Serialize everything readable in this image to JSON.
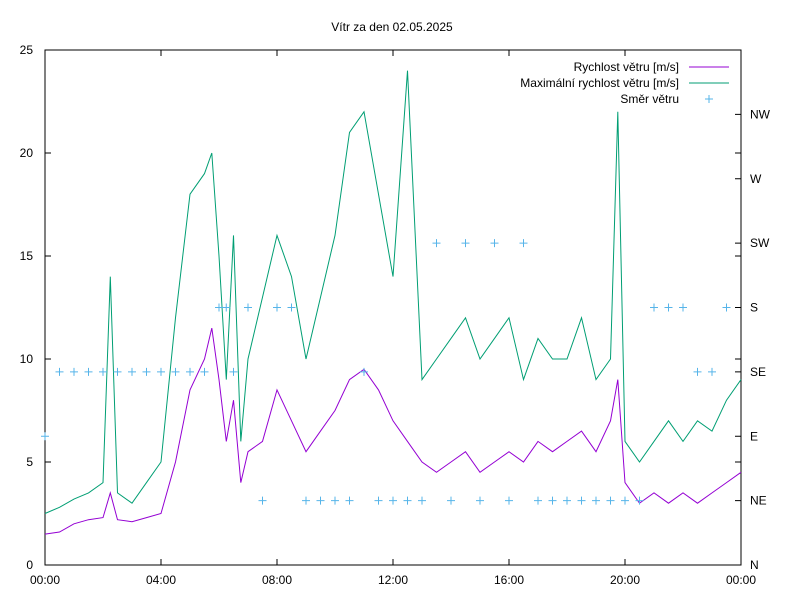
{
  "chart_data": {
    "type": "line",
    "title": "Vítr za den 02.05.2025",
    "xlim_hours": [
      0,
      24
    ],
    "ylim": [
      0,
      25
    ],
    "y_ticks": [
      0,
      5,
      10,
      15,
      20,
      25
    ],
    "x_tick_labels": [
      "00:00",
      "04:00",
      "08:00",
      "12:00",
      "16:00",
      "20:00",
      "00:00"
    ],
    "y2_ticks": [
      "N",
      "NE",
      "E",
      "SE",
      "S",
      "SW",
      "W",
      "NW"
    ],
    "legend_position": "top-right",
    "series": [
      {
        "name": "Rychlost větru [m/s]",
        "color": "#9400d3",
        "x": [
          "00:00",
          "00:30",
          "01:00",
          "01:30",
          "02:00",
          "02:15",
          "02:30",
          "03:00",
          "03:30",
          "04:00",
          "04:30",
          "05:00",
          "05:30",
          "05:45",
          "06:00",
          "06:15",
          "06:30",
          "06:45",
          "07:00",
          "07:30",
          "08:00",
          "08:30",
          "09:00",
          "09:30",
          "10:00",
          "10:30",
          "11:00",
          "11:30",
          "12:00",
          "12:30",
          "13:00",
          "13:30",
          "14:00",
          "14:30",
          "15:00",
          "15:30",
          "16:00",
          "16:30",
          "17:00",
          "17:30",
          "18:00",
          "18:30",
          "19:00",
          "19:30",
          "19:45",
          "20:00",
          "20:30",
          "21:00",
          "21:30",
          "22:00",
          "22:30",
          "23:00",
          "23:30",
          "24:00"
        ],
        "values": [
          1.5,
          1.6,
          2.0,
          2.2,
          2.3,
          3.5,
          2.2,
          2.1,
          2.3,
          2.5,
          5.0,
          8.5,
          10.0,
          11.5,
          9.0,
          6.0,
          8.0,
          4.0,
          5.5,
          6.0,
          8.5,
          7.0,
          5.5,
          6.5,
          7.5,
          9.0,
          9.5,
          8.5,
          7.0,
          6.0,
          5.0,
          4.5,
          5.0,
          5.5,
          4.5,
          5.0,
          5.5,
          5.0,
          6.0,
          5.5,
          6.0,
          6.5,
          5.5,
          7.0,
          9.0,
          4.0,
          3.0,
          3.5,
          3.0,
          3.5,
          3.0,
          3.5,
          4.0,
          4.5
        ]
      },
      {
        "name": "Maximální rychlost větru [m/s]",
        "color": "#009e73",
        "x": [
          "00:00",
          "00:30",
          "01:00",
          "01:30",
          "02:00",
          "02:15",
          "02:30",
          "03:00",
          "03:30",
          "04:00",
          "04:30",
          "05:00",
          "05:30",
          "05:45",
          "06:00",
          "06:15",
          "06:30",
          "06:45",
          "07:00",
          "07:30",
          "08:00",
          "08:30",
          "09:00",
          "09:30",
          "10:00",
          "10:30",
          "11:00",
          "11:30",
          "12:00",
          "12:30",
          "13:00",
          "13:30",
          "14:00",
          "14:30",
          "15:00",
          "15:30",
          "16:00",
          "16:30",
          "17:00",
          "17:30",
          "18:00",
          "18:30",
          "19:00",
          "19:30",
          "19:45",
          "20:00",
          "20:30",
          "21:00",
          "21:30",
          "22:00",
          "22:30",
          "23:00",
          "23:30",
          "24:00"
        ],
        "values": [
          2.5,
          2.8,
          3.2,
          3.5,
          4.0,
          14.0,
          3.5,
          3.0,
          4.0,
          5.0,
          12.0,
          18.0,
          19.0,
          20.0,
          15.0,
          9.0,
          16.0,
          6.0,
          10.0,
          13.0,
          16.0,
          14.0,
          10.0,
          13.0,
          16.0,
          21.0,
          22.0,
          18.0,
          14.0,
          24.0,
          9.0,
          10.0,
          11.0,
          12.0,
          10.0,
          11.0,
          12.0,
          9.0,
          11.0,
          10.0,
          10.0,
          12.0,
          9.0,
          10.0,
          22.0,
          6.0,
          5.0,
          6.0,
          7.0,
          6.0,
          7.0,
          6.5,
          8.0,
          9.0
        ]
      },
      {
        "name": "Směr větru",
        "color": "#56b4e9",
        "marker": "+",
        "direction_order": [
          "N",
          "NE",
          "E",
          "SE",
          "S",
          "SW",
          "W",
          "NW"
        ],
        "x": [
          "00:00",
          "00:30",
          "01:00",
          "01:30",
          "02:00",
          "02:30",
          "03:00",
          "03:30",
          "04:00",
          "04:30",
          "05:00",
          "05:30",
          "06:00",
          "06:15",
          "06:30",
          "07:00",
          "07:30",
          "08:00",
          "08:30",
          "09:00",
          "09:30",
          "10:00",
          "10:30",
          "11:00",
          "11:30",
          "12:00",
          "12:30",
          "13:00",
          "13:30",
          "14:00",
          "14:30",
          "15:00",
          "15:30",
          "16:00",
          "16:30",
          "17:00",
          "17:30",
          "18:00",
          "18:30",
          "19:00",
          "19:30",
          "20:00",
          "20:30",
          "21:00",
          "21:30",
          "22:00",
          "22:30",
          "23:00",
          "23:30"
        ],
        "values": [
          "E",
          "SE",
          "SE",
          "SE",
          "SE",
          "SE",
          "SE",
          "SE",
          "SE",
          "SE",
          "SE",
          "SE",
          "S",
          "S",
          "SE",
          "S",
          "NE",
          "S",
          "S",
          "NE",
          "NE",
          "NE",
          "NE",
          "SE",
          "NE",
          "NE",
          "NE",
          "NE",
          "SW",
          "NE",
          "SW",
          "NE",
          "SW",
          "NE",
          "SW",
          "NE",
          "NE",
          "NE",
          "NE",
          "NE",
          "NE",
          "NE",
          "NE",
          "S",
          "S",
          "S",
          "SE",
          "SE",
          "S"
        ]
      }
    ]
  }
}
